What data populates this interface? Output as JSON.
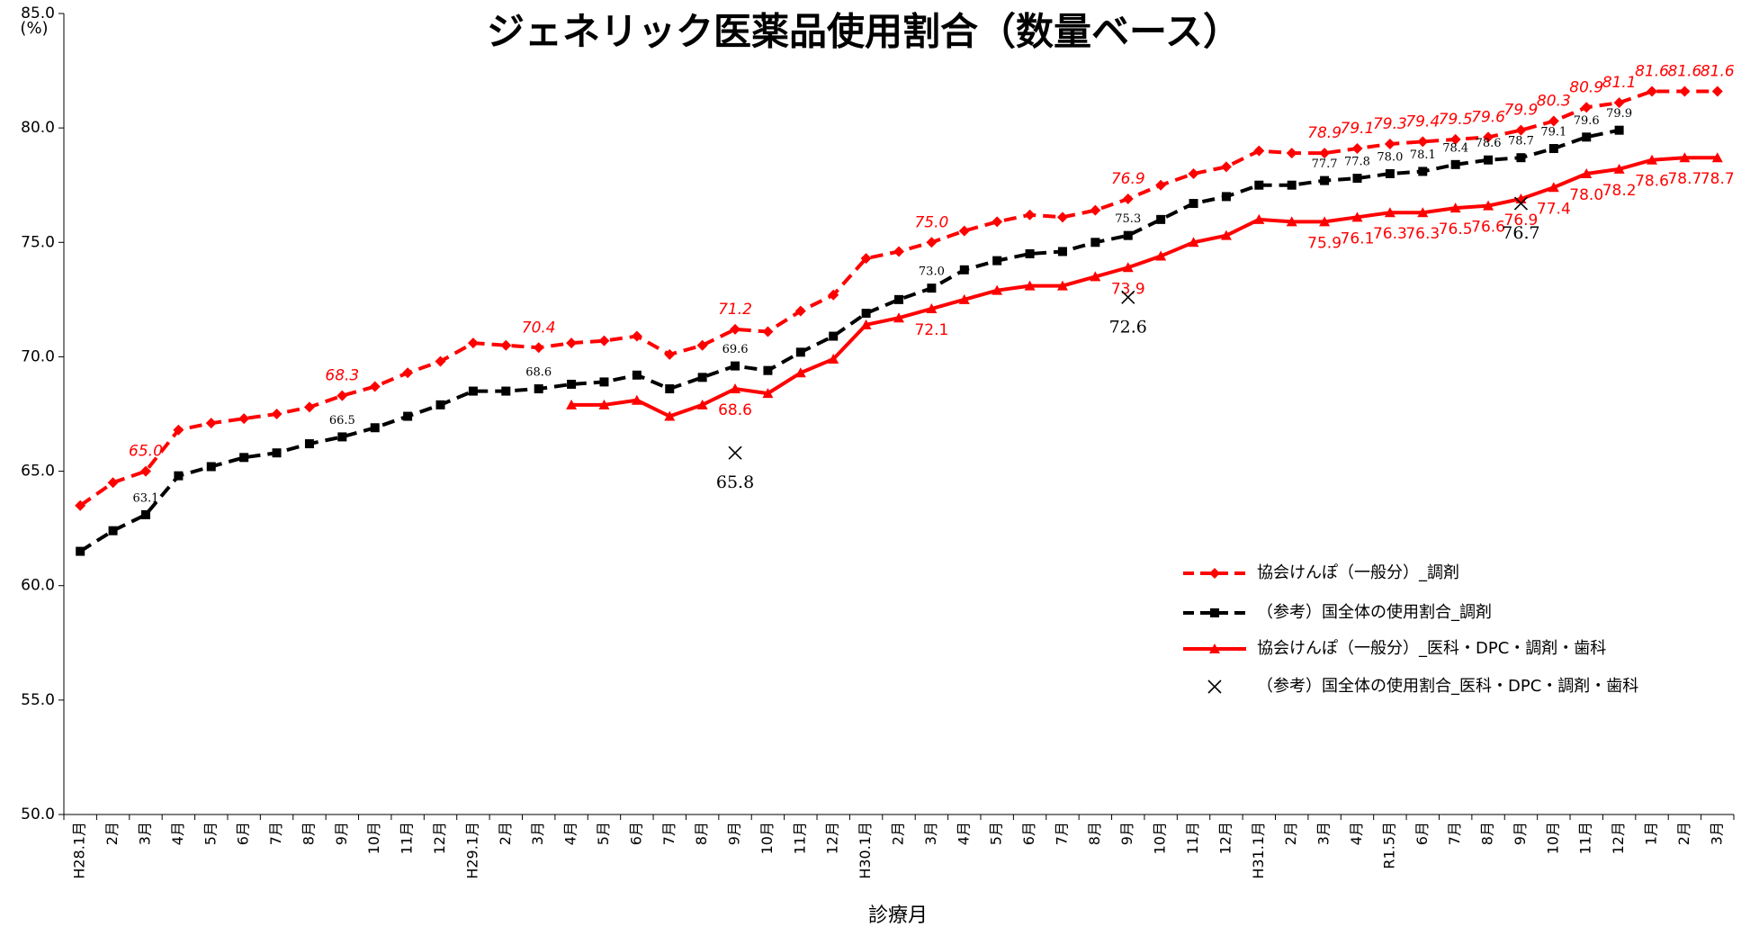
{
  "chart_data": {
    "type": "line",
    "title": "ジェネリック医薬品使用割合（数量ベース）",
    "y_unit": "(%)",
    "x_label": "診療月",
    "categories": [
      "H28.1月",
      "2月",
      "3月",
      "4月",
      "5月",
      "6月",
      "7月",
      "8月",
      "9月",
      "10月",
      "11月",
      "12月",
      "H29.1月",
      "2月",
      "3月",
      "4月",
      "5月",
      "6月",
      "7月",
      "8月",
      "9月",
      "10月",
      "11月",
      "12月",
      "H30.1月",
      "2月",
      "3月",
      "4月",
      "5月",
      "6月",
      "7月",
      "8月",
      "9月",
      "10月",
      "11月",
      "12月",
      "H31.1月",
      "2月",
      "3月",
      "4月",
      "R1.5月",
      "6月",
      "7月",
      "8月",
      "9月",
      "10月",
      "11月",
      "12月",
      "1月",
      "2月",
      "3月"
    ],
    "ylim": [
      50,
      85
    ],
    "yticks": [
      {
        "value": 50,
        "label": "50.0"
      },
      {
        "value": 55,
        "label": "55.0"
      },
      {
        "value": 60,
        "label": "60.0"
      },
      {
        "value": 65,
        "label": "65.0"
      },
      {
        "value": 70,
        "label": "70.0"
      },
      {
        "value": 75,
        "label": "75.0"
      },
      {
        "value": 80,
        "label": "80.0"
      },
      {
        "value": 85,
        "label": "85.0"
      }
    ],
    "series": [
      {
        "name": "協会けんぽ（一般分）_調剤",
        "color": "#ff0000",
        "line_style": "dashed",
        "marker": "diamond",
        "values": [
          63.5,
          64.5,
          65.0,
          66.8,
          67.1,
          67.3,
          67.5,
          67.8,
          68.3,
          68.7,
          69.3,
          69.8,
          70.6,
          70.5,
          70.4,
          70.6,
          70.7,
          70.9,
          70.1,
          70.5,
          71.2,
          71.1,
          72.0,
          72.7,
          74.3,
          74.6,
          75.0,
          75.5,
          75.9,
          76.2,
          76.1,
          76.4,
          76.9,
          77.5,
          78.0,
          78.3,
          79.0,
          78.9,
          78.9,
          79.1,
          79.3,
          79.4,
          79.5,
          79.6,
          79.9,
          80.3,
          80.9,
          81.1,
          81.6,
          81.6,
          81.6
        ],
        "value_labels": [
          null,
          null,
          "65.0",
          null,
          null,
          null,
          null,
          null,
          "68.3",
          null,
          null,
          null,
          null,
          null,
          "70.4",
          null,
          null,
          null,
          null,
          null,
          "71.2",
          null,
          null,
          null,
          null,
          null,
          "75.0",
          null,
          null,
          null,
          null,
          null,
          "76.9",
          null,
          null,
          null,
          null,
          null,
          "78.9",
          "79.1",
          "79.3",
          "79.4",
          "79.5",
          "79.6",
          "79.9",
          "80.3",
          "80.9",
          "81.1",
          "81.6",
          "81.6",
          "81.6"
        ]
      },
      {
        "name": "（参考）国全体の使用割合_調剤",
        "color": "#000000",
        "line_style": "dashed",
        "marker": "square",
        "values": [
          61.5,
          62.4,
          63.1,
          64.8,
          65.2,
          65.6,
          65.8,
          66.2,
          66.5,
          66.9,
          67.4,
          67.9,
          68.5,
          68.5,
          68.6,
          68.8,
          68.9,
          69.2,
          68.6,
          69.1,
          69.6,
          69.4,
          70.2,
          70.9,
          71.9,
          72.5,
          73.0,
          73.8,
          74.2,
          74.5,
          74.6,
          75.0,
          75.3,
          76.0,
          76.7,
          77.0,
          77.5,
          77.5,
          77.7,
          77.8,
          78.0,
          78.1,
          78.4,
          78.6,
          78.7,
          79.1,
          79.6,
          79.9,
          null,
          null,
          null
        ],
        "value_labels": [
          null,
          null,
          "63.1",
          null,
          null,
          null,
          null,
          null,
          "66.5",
          null,
          null,
          null,
          null,
          null,
          "68.6",
          null,
          null,
          null,
          null,
          null,
          "69.6",
          null,
          null,
          null,
          null,
          null,
          "73.0",
          null,
          null,
          null,
          null,
          null,
          "75.3",
          null,
          null,
          null,
          null,
          null,
          "77.7",
          "77.8",
          "78.0",
          "78.1",
          "78.4",
          "78.6",
          "78.7",
          "79.1",
          "79.6",
          "79.9",
          null,
          null,
          null
        ]
      },
      {
        "name": "協会けんぽ（一般分）_医科・DPC・調剤・歯科",
        "color": "#ff0000",
        "line_style": "solid",
        "marker": "triangle",
        "values": [
          null,
          null,
          null,
          null,
          null,
          null,
          null,
          null,
          null,
          null,
          null,
          null,
          null,
          null,
          null,
          67.9,
          67.9,
          68.1,
          67.4,
          67.9,
          68.6,
          68.4,
          69.3,
          69.9,
          71.4,
          71.7,
          72.1,
          72.5,
          72.9,
          73.1,
          73.1,
          73.5,
          73.9,
          74.4,
          75.0,
          75.3,
          76.0,
          75.9,
          75.9,
          76.1,
          76.3,
          76.3,
          76.5,
          76.6,
          76.9,
          77.4,
          78.0,
          78.2,
          78.6,
          78.7,
          78.7
        ],
        "value_labels": [
          null,
          null,
          null,
          null,
          null,
          null,
          null,
          null,
          null,
          null,
          null,
          null,
          null,
          null,
          null,
          null,
          null,
          null,
          null,
          null,
          "68.6",
          null,
          null,
          null,
          null,
          null,
          "72.1",
          null,
          null,
          null,
          null,
          null,
          "73.9",
          null,
          null,
          null,
          null,
          null,
          "75.9",
          "76.1",
          "76.3",
          "76.3",
          "76.5",
          "76.6",
          "76.9",
          "77.4",
          "78.0",
          "78.2",
          "78.6",
          "78.7",
          "78.7"
        ]
      },
      {
        "name": "（参考）国全体の使用割合_医科・DPC・調剤・歯科",
        "color": "#000000",
        "line_style": "none",
        "marker": "x",
        "values": [
          null,
          null,
          null,
          null,
          null,
          null,
          null,
          null,
          null,
          null,
          null,
          null,
          null,
          null,
          null,
          null,
          null,
          null,
          null,
          null,
          65.8,
          null,
          null,
          null,
          null,
          null,
          null,
          null,
          null,
          null,
          null,
          null,
          72.6,
          null,
          null,
          null,
          null,
          null,
          null,
          null,
          null,
          null,
          null,
          null,
          76.7,
          null,
          null,
          null,
          null,
          null,
          null
        ],
        "value_labels": [
          null,
          null,
          null,
          null,
          null,
          null,
          null,
          null,
          null,
          null,
          null,
          null,
          null,
          null,
          null,
          null,
          null,
          null,
          null,
          null,
          "65.8",
          null,
          null,
          null,
          null,
          null,
          null,
          null,
          null,
          null,
          null,
          null,
          "72.6",
          null,
          null,
          null,
          null,
          null,
          null,
          null,
          null,
          null,
          null,
          null,
          "76.7",
          null,
          null,
          null,
          null,
          null,
          null
        ]
      }
    ]
  }
}
